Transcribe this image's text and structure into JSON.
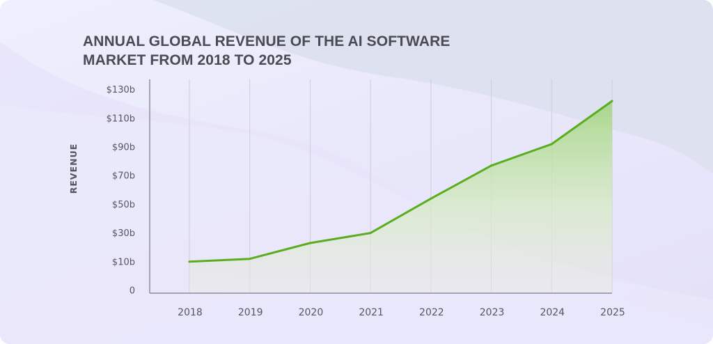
{
  "chart_data": {
    "type": "area",
    "title_lines": [
      "ANNUAL GLOBAL REVENUE OF THE AI SOFTWARE",
      "MARKET FROM 2018 TO 2025"
    ],
    "xlabel": "",
    "ylabel": "REVENUE",
    "categories": [
      "2018",
      "2019",
      "2020",
      "2021",
      "2022",
      "2023",
      "2024",
      "2025"
    ],
    "series": [
      {
        "name": "Revenue ($b)",
        "values": [
          10,
          12,
          23,
          30,
          54,
          77,
          92,
          122
        ],
        "color": "#5aad1e"
      }
    ],
    "y_ticks": [
      {
        "label": "0",
        "value": 0
      },
      {
        "label": "$10b",
        "value": 10
      },
      {
        "label": "$30b",
        "value": 30
      },
      {
        "label": "$50b",
        "value": 50
      },
      {
        "label": "$70b",
        "value": 70
      },
      {
        "label": "$90b",
        "value": 90
      },
      {
        "label": "$110b",
        "value": 110
      },
      {
        "label": "$130b",
        "value": 130
      }
    ],
    "ylim": [
      0,
      130
    ],
    "grid": "vertical",
    "legend": "none"
  }
}
